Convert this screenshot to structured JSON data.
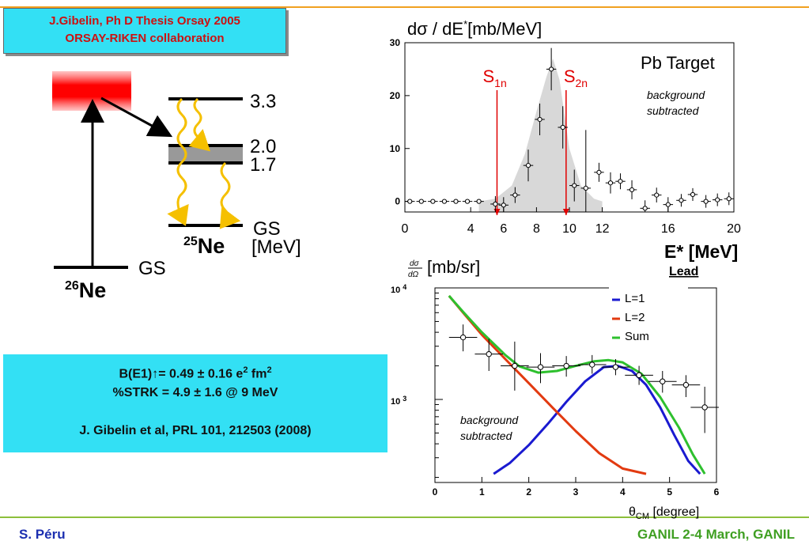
{
  "header": {
    "credit_line1": "J.Gibelin, Ph D Thesis Orsay 2005",
    "credit_line2": "ORSAY-RIKEN collaboration"
  },
  "level_scheme": {
    "levels": [
      "3.3",
      "2.0",
      "1.7",
      "GS"
    ],
    "unit": "[MeV]",
    "gs_label_26": "GS",
    "nucleus_25": {
      "mass": "25",
      "symbol": "Ne"
    },
    "nucleus_26": {
      "mass": "26",
      "symbol": "Ne"
    }
  },
  "results": {
    "line1": "B(E1)↑= 0.49 ± 0.16 e",
    "line1_sup": "2",
    "line1_tail": " fm",
    "line1_sup2": "2",
    "line2": "%STRK = 4.9 ± 1.6 @ 9 MeV",
    "line3": "J. Gibelin et al, PRL 101, 212503 (2008)"
  },
  "footer": {
    "author": "S. Péru",
    "event": "GANIL 2-4 March, GANIL"
  },
  "colors": {
    "cyan_box": "#33e0f4",
    "red_text": "#cc1111",
    "orange_line": "#f0a020",
    "green_line": "#8cbf3a",
    "blue_curve": "#1a1ad0",
    "red_curve": "#e23a10",
    "green_curve": "#2ec02e",
    "arrow_yellow": "#f5c000"
  },
  "chart_data": [
    {
      "type": "scatter",
      "title": "Pb Target",
      "ylabel": "dσ / dE* [mb/MeV]",
      "xlabel": "E* [MeV]",
      "xlim": [
        0,
        20
      ],
      "ylim": [
        -2,
        30
      ],
      "xticks": [
        0,
        4,
        6,
        8,
        10,
        12,
        16,
        20
      ],
      "yticks": [
        0,
        10,
        20,
        30
      ],
      "annotation": "background subtracted",
      "thresholds": [
        {
          "label": "S",
          "sub": "1n",
          "x": 5.6
        },
        {
          "label": "S",
          "sub": "2n",
          "x": 9.8
        }
      ],
      "points": [
        {
          "x": 0.3,
          "y": 0
        },
        {
          "x": 1.0,
          "y": 0
        },
        {
          "x": 1.7,
          "y": 0
        },
        {
          "x": 2.4,
          "y": 0
        },
        {
          "x": 3.1,
          "y": 0
        },
        {
          "x": 3.8,
          "y": 0
        },
        {
          "x": 4.5,
          "y": 0
        },
        {
          "x": 5.5,
          "y": -0.5
        },
        {
          "x": 6.0,
          "y": -0.7
        },
        {
          "x": 6.7,
          "y": 1.2
        },
        {
          "x": 7.5,
          "y": 6.8
        },
        {
          "x": 8.2,
          "y": 15.5
        },
        {
          "x": 8.9,
          "y": 25
        },
        {
          "x": 9.6,
          "y": 14
        },
        {
          "x": 10.3,
          "y": 3
        },
        {
          "x": 11.0,
          "y": 2.5
        },
        {
          "x": 11.8,
          "y": 5.5
        },
        {
          "x": 12.5,
          "y": 3.5
        },
        {
          "x": 13.1,
          "y": 3.8
        },
        {
          "x": 13.8,
          "y": 2.2
        },
        {
          "x": 14.6,
          "y": -1.3
        },
        {
          "x": 15.3,
          "y": 1.2
        },
        {
          "x": 16.0,
          "y": -0.6
        },
        {
          "x": 16.8,
          "y": 0.2
        },
        {
          "x": 17.5,
          "y": 1.3
        },
        {
          "x": 18.3,
          "y": 0
        },
        {
          "x": 19.0,
          "y": 0.3
        },
        {
          "x": 19.7,
          "y": 0.5
        }
      ],
      "yerr": [
        0.3,
        0.3,
        0.3,
        0.3,
        0.3,
        0.3,
        0.3,
        1.5,
        1.5,
        1.5,
        3,
        3,
        4,
        4,
        3,
        11,
        1.8,
        2,
        1.5,
        1.8,
        1.5,
        1.4,
        1.4,
        1.2,
        1.2,
        1.2,
        1.2,
        1.2
      ],
      "xerr": 0.3,
      "shaded_peak": {
        "x": [
          4.5,
          5.5,
          6.5,
          7.3,
          8.0,
          8.6,
          9.0,
          9.4,
          10.0,
          10.7,
          11.5,
          12.0
        ],
        "y": [
          0,
          0.5,
          3,
          9,
          17,
          23.5,
          27,
          23,
          10,
          3,
          0.5,
          0
        ]
      }
    },
    {
      "type": "line",
      "title": "Lead",
      "ylabel": "dσ/dΩ [mb/sr]",
      "xlabel": "θCM [degree]",
      "yscale": "log",
      "xlim": [
        0,
        6
      ],
      "ylim": [
        180,
        10000
      ],
      "xticks": [
        0,
        1,
        2,
        3,
        4,
        5,
        6
      ],
      "ytick_labels": [
        "10^4",
        "10^3"
      ],
      "annotation": "background subtracted",
      "legend_position": "top-right",
      "series": [
        {
          "name": "L=1",
          "color": "#1a1ad0",
          "x": [
            1.25,
            1.6,
            2.0,
            2.4,
            2.8,
            3.2,
            3.6,
            3.9,
            4.2,
            4.5,
            4.8,
            5.1,
            5.4,
            5.65
          ],
          "y": [
            215,
            270,
            390,
            600,
            950,
            1450,
            1950,
            2000,
            1800,
            1350,
            850,
            480,
            280,
            215
          ]
        },
        {
          "name": "L=2",
          "color": "#e23a10",
          "x": [
            0.3,
            0.6,
            1.0,
            1.5,
            2.0,
            2.5,
            3.0,
            3.5,
            4.0,
            4.5
          ],
          "y": [
            8500,
            6000,
            3800,
            2300,
            1400,
            850,
            520,
            330,
            240,
            215
          ]
        },
        {
          "name": "Sum",
          "color": "#2ec02e",
          "x": [
            0.3,
            0.6,
            1.0,
            1.5,
            1.8,
            2.2,
            2.6,
            3.0,
            3.4,
            3.7,
            4.0,
            4.4,
            4.8,
            5.2,
            5.5,
            5.75
          ],
          "y": [
            8500,
            6100,
            4000,
            2500,
            1980,
            1740,
            1800,
            2000,
            2200,
            2250,
            2150,
            1700,
            1050,
            560,
            320,
            215
          ]
        }
      ],
      "points": [
        {
          "x": 0.6,
          "y": 3600,
          "yerr": [
            2700,
            4700
          ],
          "xerr": 0.3
        },
        {
          "x": 1.15,
          "y": 2550,
          "yerr": [
            1800,
            3500
          ],
          "xerr": 0.3
        },
        {
          "x": 1.7,
          "y": 2000,
          "yerr": [
            1200,
            3300
          ],
          "xerr": 0.3
        },
        {
          "x": 2.25,
          "y": 1950,
          "yerr": [
            1400,
            2600
          ],
          "xerr": 0.3
        },
        {
          "x": 2.8,
          "y": 2000,
          "yerr": [
            1600,
            2450
          ],
          "xerr": 0.3
        },
        {
          "x": 3.35,
          "y": 2050,
          "yerr": [
            1700,
            2500
          ],
          "xerr": 0.3
        },
        {
          "x": 3.85,
          "y": 1950,
          "yerr": [
            1650,
            2300
          ],
          "xerr": 0.3
        },
        {
          "x": 4.35,
          "y": 1650,
          "yerr": [
            1350,
            2000
          ],
          "xerr": 0.3
        },
        {
          "x": 4.85,
          "y": 1450,
          "yerr": [
            1150,
            1800
          ],
          "xerr": 0.3
        },
        {
          "x": 5.35,
          "y": 1350,
          "yerr": [
            1050,
            1650
          ],
          "xerr": 0.3
        },
        {
          "x": 5.75,
          "y": 850,
          "yerr": [
            500,
            1300
          ],
          "xerr": 0.3
        }
      ]
    }
  ]
}
